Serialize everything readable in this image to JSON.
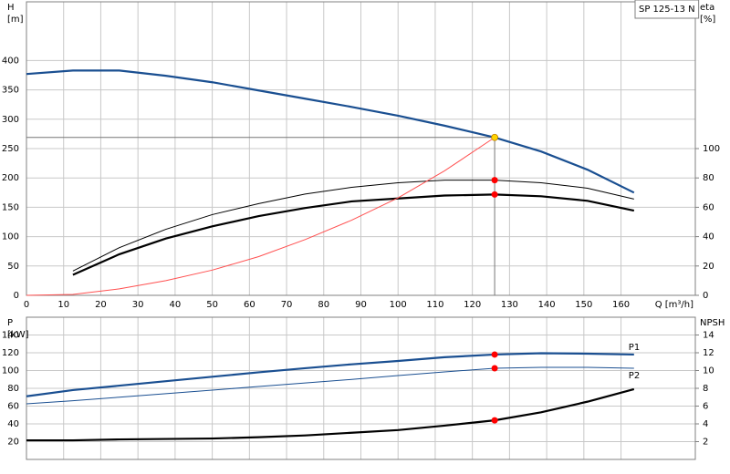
{
  "chart_data": [
    {
      "type": "line",
      "title": "SP 125-13 N",
      "ylabel": [
        "H",
        "[m]"
      ],
      "y2label": [
        "eta",
        "[%]"
      ],
      "xlabel": "Q [m³/h]",
      "x": [
        0,
        12.5,
        25,
        37.5,
        50,
        62.5,
        75,
        87.5,
        100,
        112.5,
        126,
        138.5,
        151,
        163.5
      ],
      "xlim": [
        0,
        180
      ],
      "xticks": [
        0,
        10,
        20,
        30,
        40,
        50,
        60,
        70,
        80,
        90,
        100,
        110,
        120,
        130,
        140,
        150,
        160
      ],
      "ylim": [
        0,
        500
      ],
      "yticks": [
        0,
        50,
        100,
        150,
        200,
        250,
        300,
        350,
        400
      ],
      "y2lim": [
        0,
        200
      ],
      "y2ticks": [
        0,
        20,
        40,
        60,
        80,
        100
      ],
      "grid": true,
      "xtick_labels": true,
      "duty_x": 126,
      "series": [
        {
          "color": "#1a4f91",
          "style": "thick",
          "marker_color": "#ffd400",
          "guide": true,
          "values": [
            377,
            383,
            383,
            374,
            363,
            349,
            335,
            321,
            306,
            289,
            269,
            245,
            214,
            175
          ]
        },
        {
          "color": "#000000",
          "style": "thin",
          "axis": "y2",
          "marker_color": "#ff0000",
          "values": [
            null,
            16.6,
            32.5,
            45,
            55,
            62.5,
            69,
            73.6,
            76.7,
            78.5,
            78.5,
            76.7,
            73,
            65.6
          ]
        },
        {
          "color": "#000000",
          "style": "thick",
          "axis": "y2",
          "marker_color": "#ff0000",
          "values": [
            null,
            14,
            28,
            38.7,
            47,
            54,
            59.5,
            64,
            66,
            68,
            68.7,
            67.5,
            64.4,
            57.7
          ]
        },
        {
          "color": "#ff5050",
          "style": "thin",
          "values": [
            0,
            1.5,
            11,
            25,
            43,
            66,
            95,
            128,
            166,
            212,
            269,
            null,
            null,
            null
          ]
        }
      ]
    },
    {
      "type": "line",
      "ylabel": [
        "P",
        "[kW]"
      ],
      "y2label": [
        "NPSH"
      ],
      "x": [
        0,
        12.5,
        25,
        37.5,
        50,
        62.5,
        75,
        87.5,
        100,
        112.5,
        126,
        138.5,
        151,
        163.5
      ],
      "xlim": [
        0,
        180
      ],
      "xticks": [
        0,
        10,
        20,
        30,
        40,
        50,
        60,
        70,
        80,
        90,
        100,
        110,
        120,
        130,
        140,
        150,
        160
      ],
      "ylim": [
        0,
        160
      ],
      "yticks": [
        20,
        40,
        60,
        80,
        100,
        120,
        140
      ],
      "y2lim": [
        0,
        16
      ],
      "y2ticks": [
        2,
        4,
        6,
        8,
        10,
        12,
        14
      ],
      "grid": true,
      "xtick_labels": false,
      "duty_x": 126,
      "series": [
        {
          "name": "P1",
          "color": "#1a4f91",
          "style": "thick",
          "marker_color": "#ff0000",
          "values": [
            71,
            78,
            83,
            88,
            93,
            98,
            102.6,
            107,
            110.8,
            115,
            118,
            119.5,
            119,
            118
          ]
        },
        {
          "name": "P2",
          "color": "#1a4f91",
          "style": "thin",
          "marker_color": "#ff0000",
          "values": [
            62.6,
            66,
            70,
            74,
            78,
            82,
            86,
            90,
            94.4,
            98.5,
            102.6,
            103.6,
            103.6,
            102.6
          ]
        },
        {
          "color": "#000000",
          "style": "thick",
          "axis": "y2",
          "marker_color": "#ff0000",
          "values": [
            2.15,
            2.15,
            2.25,
            2.3,
            2.35,
            2.5,
            2.7,
            3,
            3.3,
            3.8,
            4.4,
            5.3,
            6.5,
            7.9
          ]
        }
      ]
    }
  ]
}
